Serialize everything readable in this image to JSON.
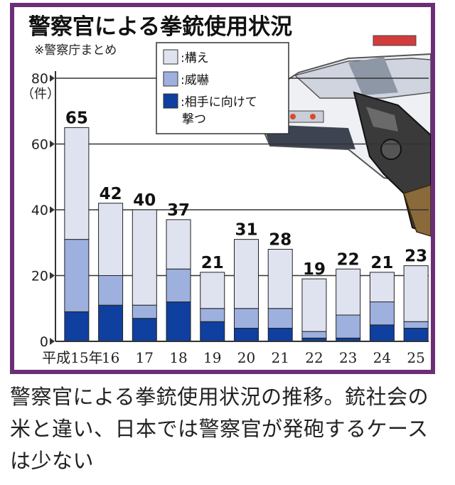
{
  "chart_data": {
    "type": "bar",
    "stacked": true,
    "title": "警察官による拳銃使用状況",
    "source_note": "※警察庁まとめ",
    "y_unit": "（件）",
    "y_range": [
      0,
      80
    ],
    "y_ticks": [
      0,
      20,
      40,
      60,
      80
    ],
    "categories": [
      "平成15年",
      "16",
      "17",
      "18",
      "19",
      "20",
      "21",
      "22",
      "23",
      "24",
      "25"
    ],
    "totals": [
      65,
      42,
      40,
      37,
      21,
      31,
      28,
      19,
      22,
      21,
      23
    ],
    "series": [
      {
        "name": "相手に向けて撃つ",
        "values": [
          9,
          11,
          7,
          12,
          6,
          4,
          4,
          1,
          1,
          5,
          4
        ]
      },
      {
        "name": "威嚇",
        "values": [
          22,
          9,
          4,
          10,
          4,
          6,
          6,
          2,
          7,
          7,
          2
        ]
      },
      {
        "name": "構え",
        "values": [
          34,
          22,
          29,
          15,
          11,
          21,
          18,
          16,
          14,
          9,
          17
        ]
      }
    ],
    "legend_position": "top-center",
    "grid": "horizontal"
  },
  "legend": {
    "items": [
      {
        "label": ":構え",
        "color": "#dfe3ef"
      },
      {
        "label": ":威嚇",
        "color": "#9db0de"
      },
      {
        "label": ":相手に向けて",
        "label2": "撃つ",
        "color": "#0f3f9f"
      }
    ]
  },
  "colors": {
    "frame": "#6b2f78",
    "hold": "#dfe3ef",
    "threat": "#9db0de",
    "shoot": "#0f3f9f"
  },
  "illustration": {
    "icons": [
      "police-car-icon",
      "revolver-icon"
    ]
  },
  "caption": "警察官による拳銃使用状況の推移。銃社会の米と違い、日本では警察官が発砲するケースは少ない"
}
